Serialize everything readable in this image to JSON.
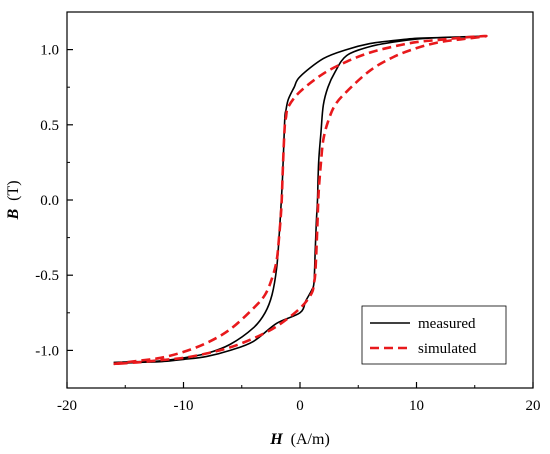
{
  "chart_data": {
    "type": "line",
    "title": "",
    "xlabel": {
      "symbol": "H",
      "unit": "(A/m)"
    },
    "ylabel": {
      "symbol": "B",
      "unit": "(T)"
    },
    "xlim": [
      -20,
      20
    ],
    "ylim": [
      -1.25,
      1.25
    ],
    "x_ticks": [
      -20,
      -10,
      0,
      10,
      20
    ],
    "x_tick_labels": [
      "-20",
      "-10",
      "0",
      "10",
      "20"
    ],
    "y_ticks": [
      -1.0,
      -0.5,
      0.0,
      0.5,
      1.0
    ],
    "y_tick_labels": [
      "-1.0",
      "-0.5",
      "0.0",
      "0.5",
      "1.0"
    ],
    "grid": false,
    "legend": {
      "position": "bottom-right"
    },
    "series": [
      {
        "name": "measured",
        "color": "#000000",
        "style": "solid",
        "x": [
          -16,
          -14,
          -12,
          -10,
          -8,
          -6,
          -4,
          -3,
          -2.4,
          -2,
          -1.8,
          -1.6,
          -1.5,
          -1.4,
          -1.3,
          -1.2,
          -1,
          -0.5,
          0,
          2,
          4,
          6,
          8,
          10,
          12,
          14,
          16,
          14,
          12,
          10,
          8,
          6,
          4,
          3,
          2.4,
          2,
          1.8,
          1.6,
          1.5,
          1.4,
          1.3,
          1.2,
          1,
          0.5,
          0,
          -2,
          -4,
          -6,
          -8,
          -10,
          -12,
          -14,
          -16
        ],
        "y": [
          -1.08,
          -1.075,
          -1.07,
          -1.05,
          -1.02,
          -0.96,
          -0.85,
          -0.75,
          -0.63,
          -0.45,
          -0.25,
          0.0,
          0.15,
          0.35,
          0.55,
          0.6,
          0.67,
          0.75,
          0.82,
          0.94,
          1.0,
          1.04,
          1.06,
          1.075,
          1.08,
          1.085,
          1.09,
          1.085,
          1.08,
          1.07,
          1.05,
          1.02,
          0.96,
          0.85,
          0.75,
          0.63,
          0.45,
          0.25,
          0.0,
          -0.15,
          -0.35,
          -0.55,
          -0.6,
          -0.67,
          -0.75,
          -0.82,
          -0.94,
          -1.0,
          -1.04,
          -1.06,
          -1.075,
          -1.08,
          -1.09
        ]
      },
      {
        "name": "simulated",
        "color": "#e8191c",
        "style": "dashed",
        "x": [
          -16,
          -14,
          -12,
          -10,
          -8,
          -6,
          -4,
          -3,
          -2.4,
          -2,
          -1.8,
          -1.6,
          -1.5,
          -1.4,
          -1.3,
          -1.2,
          -1,
          0,
          2,
          4,
          6,
          8,
          10,
          12,
          14,
          16,
          14,
          12,
          10,
          8,
          6,
          4,
          3,
          2.4,
          2,
          1.8,
          1.6,
          1.5,
          1.4,
          1.3,
          1.2,
          1,
          0,
          -2,
          -4,
          -6,
          -8,
          -10,
          -12,
          -14,
          -16
        ],
        "y": [
          -1.09,
          -1.07,
          -1.05,
          -1.01,
          -0.95,
          -0.86,
          -0.72,
          -0.63,
          -0.52,
          -0.4,
          -0.25,
          -0.05,
          0.15,
          0.35,
          0.5,
          0.55,
          0.62,
          0.72,
          0.84,
          0.92,
          0.98,
          1.02,
          1.05,
          1.065,
          1.08,
          1.09,
          1.07,
          1.05,
          1.01,
          0.95,
          0.86,
          0.72,
          0.63,
          0.52,
          0.4,
          0.25,
          0.05,
          -0.15,
          -0.35,
          -0.5,
          -0.55,
          -0.62,
          -0.72,
          -0.84,
          -0.92,
          -0.98,
          -1.02,
          -1.05,
          -1.065,
          -1.08,
          -1.09
        ]
      }
    ]
  }
}
